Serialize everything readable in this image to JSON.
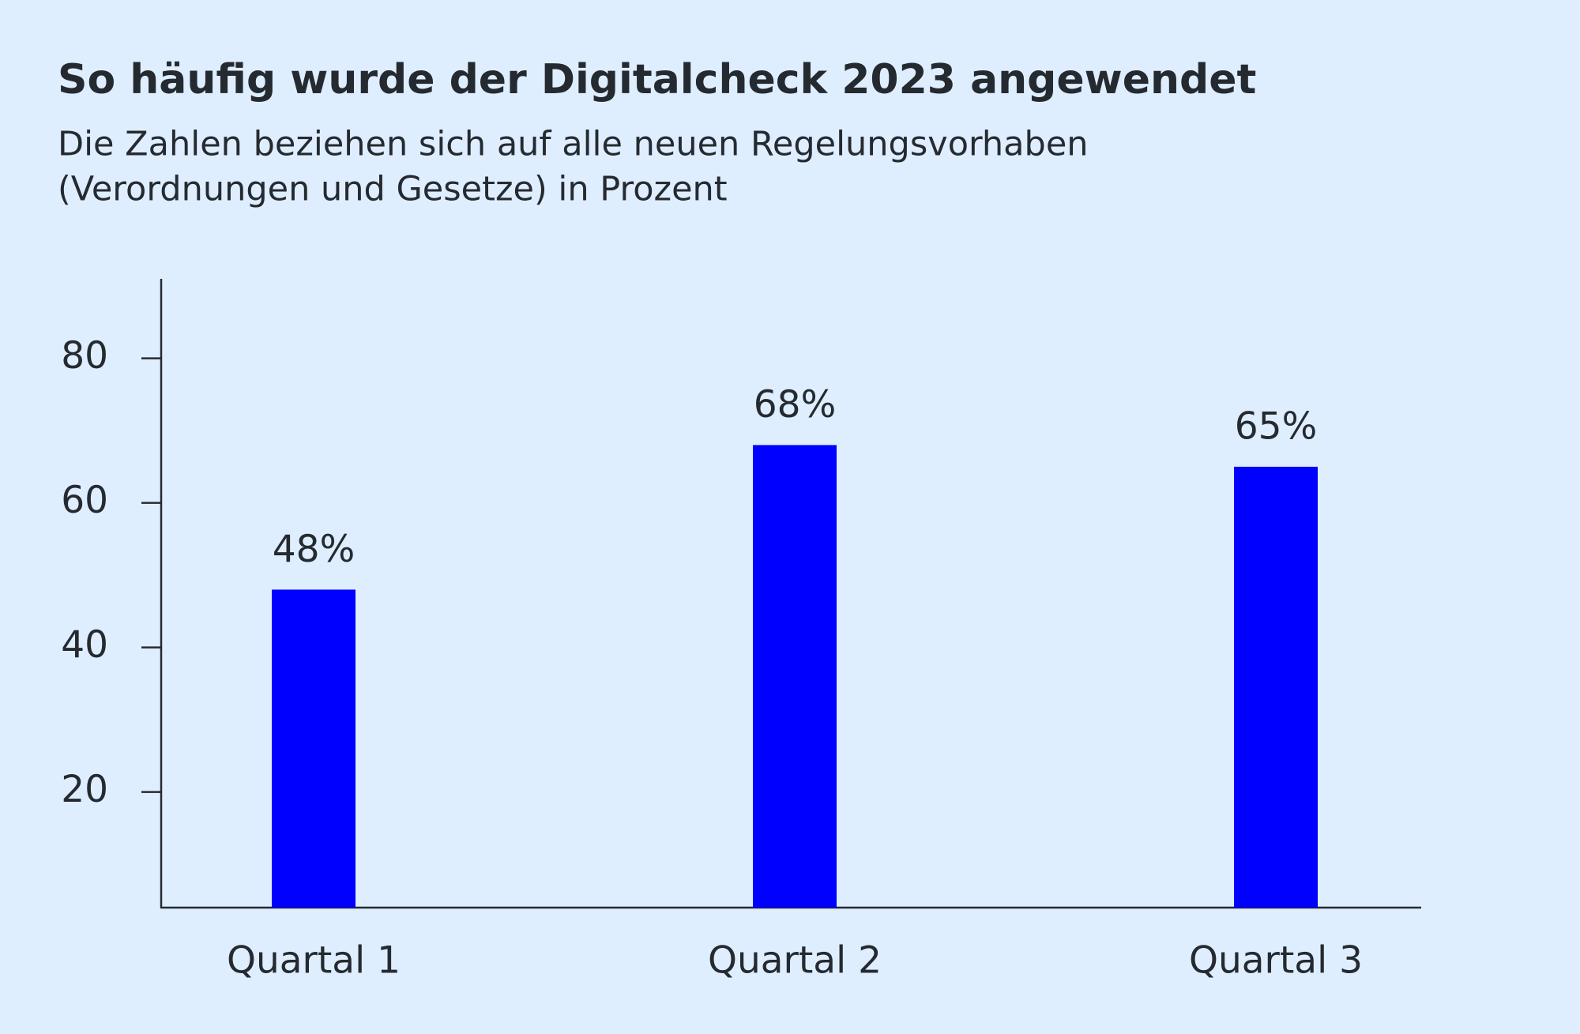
{
  "chart_data": {
    "type": "bar",
    "title": "So häufig wurde der Digitalcheck 2023 angewendet",
    "subtitle": [
      "Die Zahlen beziehen sich auf alle neuen Regelungsvorhaben",
      "(Verordnungen und Gesetze) in Prozent"
    ],
    "categories": [
      "Quartal 1",
      "Quartal 2",
      "Quartal 3"
    ],
    "values": [
      48,
      68,
      65
    ],
    "value_labels": [
      "48%",
      "68%",
      "65%"
    ],
    "color": "#0000ff",
    "ylim": [
      4,
      91
    ],
    "yticks": [
      20,
      40,
      60,
      80
    ],
    "grid": false
  }
}
